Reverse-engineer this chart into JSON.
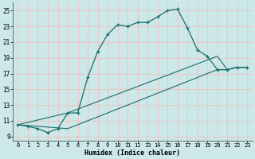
{
  "xlabel": "Humidex (Indice chaleur)",
  "bg_color": "#cce8e8",
  "grid_color": "#e8c8c8",
  "line_color": "#1a6b6b",
  "xlim": [
    -0.5,
    23.5
  ],
  "ylim": [
    8.5,
    26.0
  ],
  "xticks": [
    0,
    1,
    2,
    3,
    4,
    5,
    6,
    7,
    8,
    9,
    10,
    11,
    12,
    13,
    14,
    15,
    16,
    17,
    18,
    19,
    20,
    21,
    22,
    23
  ],
  "yticks": [
    9,
    11,
    13,
    15,
    17,
    19,
    21,
    23,
    25
  ],
  "series1_x": [
    0,
    1,
    2,
    3,
    4,
    5,
    6,
    7,
    8,
    9,
    10,
    11,
    12,
    13,
    14,
    15,
    16,
    17,
    18,
    19,
    20,
    21,
    22,
    23
  ],
  "series1_y": [
    10.5,
    10.3,
    10.0,
    9.5,
    10.0,
    12.0,
    12.0,
    16.5,
    19.8,
    22.0,
    23.2,
    23.0,
    23.5,
    23.5,
    24.2,
    25.0,
    25.2,
    22.8,
    20.0,
    19.2,
    17.5,
    17.5,
    17.8,
    17.8
  ],
  "series2_x": [
    0,
    5,
    20,
    21,
    22,
    23
  ],
  "series2_y": [
    10.5,
    12.0,
    19.2,
    17.5,
    17.8,
    17.8
  ],
  "series3_x": [
    0,
    5,
    20,
    21,
    22,
    23
  ],
  "series3_y": [
    10.5,
    10.0,
    17.5,
    17.5,
    17.8,
    17.8
  ]
}
